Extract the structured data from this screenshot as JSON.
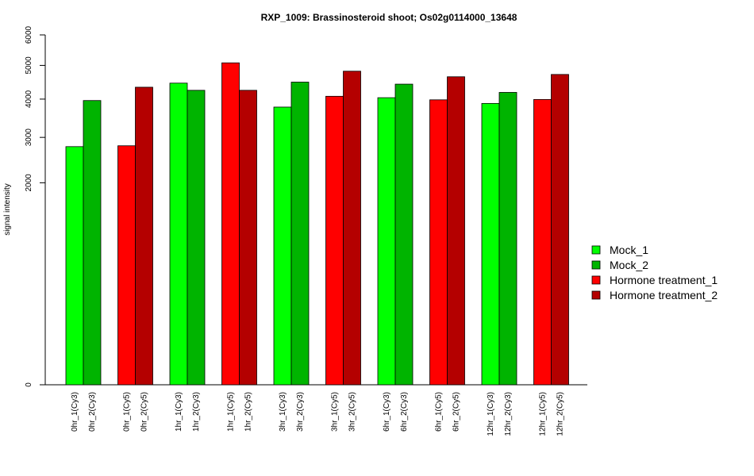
{
  "chart_data": {
    "type": "bar",
    "title": "RXP_1009: Brassinosteroid shoot; Os02g0114000_13648",
    "xlabel": "",
    "ylabel": "signal intensity",
    "ylim": [
      0,
      6000
    ],
    "y_ticks": [
      0,
      2000,
      3000,
      4000,
      5000,
      6000
    ],
    "y_tick_labels": [
      "0",
      "2000",
      "3000",
      "4000",
      "5000",
      "6000"
    ],
    "y_scale": "sqrt",
    "legend_position": "right",
    "series_colors": {
      "Mock_1": "#00ff00",
      "Mock_2": "#00b400",
      "Hormone treatment_1": "#ff0000",
      "Hormone treatment_2": "#b40000"
    },
    "legend": [
      "Mock_1",
      "Mock_2",
      "Hormone treatment_1",
      "Hormone treatment_2"
    ],
    "groups": [
      {
        "bars": [
          {
            "label": "0hr_1(Cy3)",
            "value": 2780,
            "series": "Mock_1"
          },
          {
            "label": "0hr_2(Cy3)",
            "value": 3960,
            "series": "Mock_2"
          }
        ]
      },
      {
        "bars": [
          {
            "label": "0hr_1(Cy5)",
            "value": 2800,
            "series": "Hormone treatment_1"
          },
          {
            "label": "0hr_2(Cy5)",
            "value": 4340,
            "series": "Hormone treatment_2"
          }
        ]
      },
      {
        "bars": [
          {
            "label": "1hr_1(Cy3)",
            "value": 4460,
            "series": "Mock_1"
          },
          {
            "label": "1hr_2(Cy3)",
            "value": 4250,
            "series": "Mock_2"
          }
        ]
      },
      {
        "bars": [
          {
            "label": "1hr_1(Cy5)",
            "value": 5080,
            "series": "Hormone treatment_1"
          },
          {
            "label": "1hr_2(Cy5)",
            "value": 4250,
            "series": "Hormone treatment_2"
          }
        ]
      },
      {
        "bars": [
          {
            "label": "3hr_1(Cy3)",
            "value": 3780,
            "series": "Mock_1"
          },
          {
            "label": "3hr_2(Cy3)",
            "value": 4490,
            "series": "Mock_2"
          }
        ]
      },
      {
        "bars": [
          {
            "label": "3hr_1(Cy5)",
            "value": 4080,
            "series": "Hormone treatment_1"
          },
          {
            "label": "3hr_2(Cy5)",
            "value": 4820,
            "series": "Hormone treatment_2"
          }
        ]
      },
      {
        "bars": [
          {
            "label": "6hr_1(Cy3)",
            "value": 4040,
            "series": "Mock_1"
          },
          {
            "label": "6hr_2(Cy3)",
            "value": 4430,
            "series": "Mock_2"
          }
        ]
      },
      {
        "bars": [
          {
            "label": "6hr_1(Cy5)",
            "value": 3980,
            "series": "Hormone treatment_1"
          },
          {
            "label": "6hr_2(Cy5)",
            "value": 4650,
            "series": "Hormone treatment_2"
          }
        ]
      },
      {
        "bars": [
          {
            "label": "12hr_1(Cy3)",
            "value": 3880,
            "series": "Mock_1"
          },
          {
            "label": "12hr_2(Cy3)",
            "value": 4190,
            "series": "Mock_2"
          }
        ]
      },
      {
        "bars": [
          {
            "label": "12hr_1(Cy5)",
            "value": 3990,
            "series": "Hormone treatment_1"
          },
          {
            "label": "12hr_2(Cy5)",
            "value": 4720,
            "series": "Hormone treatment_2"
          }
        ]
      }
    ]
  }
}
